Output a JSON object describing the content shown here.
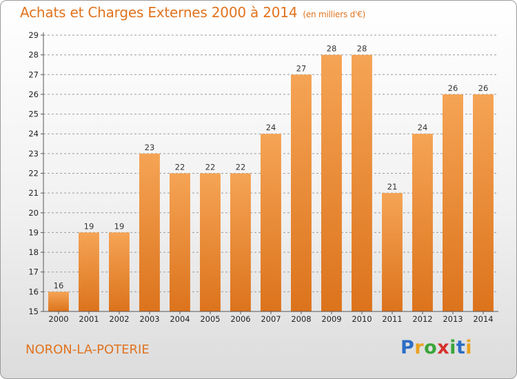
{
  "header": {
    "title": "Achats et Charges Externes 2000 à 2014",
    "unit": "(en milliers d'€)"
  },
  "footer": {
    "place": "NORON-LA-POTERIE",
    "logo_parts": [
      "P",
      "r",
      "o",
      "x",
      "i",
      "t",
      "i"
    ]
  },
  "colors": {
    "bar_light": "#f5a455",
    "bar_dark": "#dc731c",
    "title": "#e0731e",
    "grid": "#9a9a9a"
  },
  "chart_data": {
    "type": "bar",
    "title": "Achats et Charges Externes 2000 à 2014",
    "subtitle": "(en milliers d'€)",
    "xlabel": "",
    "ylabel": "",
    "categories": [
      "2000",
      "2001",
      "2002",
      "2003",
      "2004",
      "2005",
      "2006",
      "2007",
      "2008",
      "2009",
      "2010",
      "2011",
      "2012",
      "2013",
      "2014"
    ],
    "values": [
      16,
      19,
      19,
      23,
      22,
      22,
      22,
      24,
      27,
      28,
      28,
      21,
      24,
      26,
      26
    ],
    "ylim": [
      15,
      29
    ],
    "yticks": [
      15,
      16,
      17,
      18,
      19,
      20,
      21,
      22,
      23,
      24,
      25,
      26,
      27,
      28,
      29
    ],
    "grid": true,
    "data_labels": true
  }
}
